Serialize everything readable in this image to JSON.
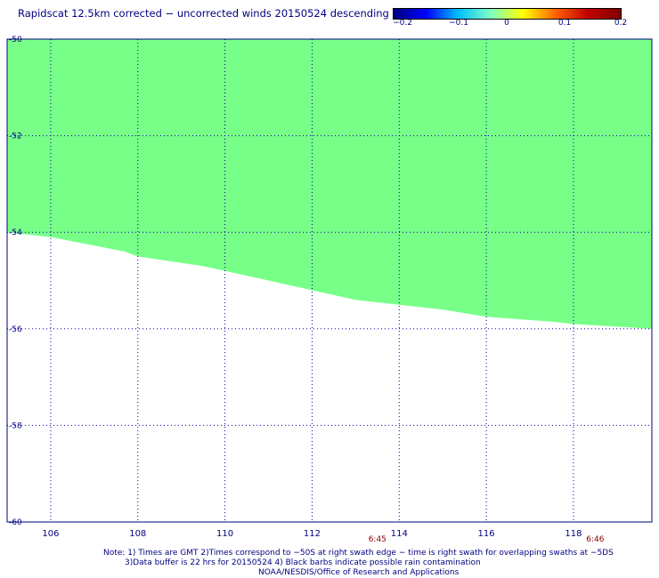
{
  "title": "Rapidscat 12.5km corrected − uncorrected winds 20150524 descending",
  "colorbar": {
    "ticks": [
      "−0.2",
      "−0.1",
      "0",
      "0.1",
      "0.2"
    ],
    "range": [
      -0.2,
      0.2
    ]
  },
  "colors": {
    "swath": "#77ff88",
    "grid": "#0000aa",
    "text": "#000080",
    "time": "#8b0000"
  },
  "chart_data": {
    "type": "heatmap",
    "title": "Rapidscat 12.5km corrected − uncorrected winds 20150524 descending",
    "xlim": [
      105,
      119.8
    ],
    "ylim": [
      -60,
      -50
    ],
    "x_ticks": [
      106,
      108,
      110,
      112,
      114,
      116,
      118
    ],
    "x_tick_labels": [
      "106",
      "108",
      "110",
      "112",
      "114",
      "116",
      "118"
    ],
    "y_ticks": [
      -50,
      -52,
      -54,
      -56,
      -58,
      -60
    ],
    "y_tick_labels": [
      "-50",
      "-52",
      "-54",
      "-56",
      "-58",
      "-60"
    ],
    "grid": true,
    "swath_value": 0,
    "swath_southern_edge": [
      {
        "lon": 105,
        "lat": -54.0
      },
      {
        "lon": 106,
        "lat": -54.1
      },
      {
        "lon": 107.7,
        "lat": -54.4
      },
      {
        "lon": 108,
        "lat": -54.5
      },
      {
        "lon": 109.5,
        "lat": -54.7
      },
      {
        "lon": 110,
        "lat": -54.8
      },
      {
        "lon": 111.5,
        "lat": -55.1
      },
      {
        "lon": 112,
        "lat": -55.2
      },
      {
        "lon": 113,
        "lat": -55.4
      },
      {
        "lon": 114,
        "lat": -55.5
      },
      {
        "lon": 115,
        "lat": -55.6
      },
      {
        "lon": 116,
        "lat": -55.75
      },
      {
        "lon": 117.5,
        "lat": -55.85
      },
      {
        "lon": 118,
        "lat": -55.9
      },
      {
        "lon": 119.8,
        "lat": -56.0
      }
    ],
    "time_labels": [
      {
        "lon": 113.5,
        "text": "6:45"
      },
      {
        "lon": 118.5,
        "text": "6:46"
      }
    ]
  },
  "notes": [
    "Note: 1) Times are GMT 2)Times correspond to −50S at right swath edge − time is right swath for overlapping swaths at −5DS",
    "3)Data buffer is 22 hrs for 20150524 4) Black barbs indicate possible rain contamination",
    "NOAA/NESDIS/Office of Research and Applications"
  ]
}
